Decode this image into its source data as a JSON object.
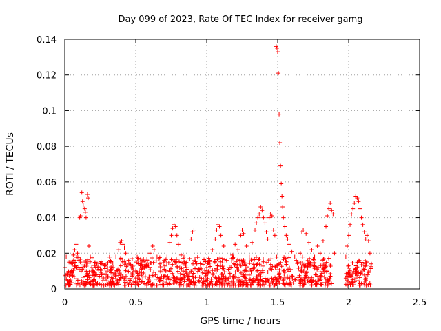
{
  "chart_data": {
    "type": "scatter",
    "title": "Day 099 of 2023, Rate Of TEC Index for receiver gamg",
    "xlabel": "GPS time / hours",
    "ylabel": "ROTI / TECUs",
    "xlim": [
      0,
      2.5
    ],
    "ylim": [
      0,
      0.14
    ],
    "xticks": [
      0,
      0.5,
      1,
      1.5,
      2,
      2.5
    ],
    "xtick_labels": [
      "0",
      "0.5",
      "1",
      "1.5",
      "2",
      "2.5"
    ],
    "yticks": [
      0,
      0.02,
      0.04,
      0.06,
      0.08,
      0.1,
      0.12,
      0.14
    ],
    "ytick_labels": [
      "0",
      "0.02",
      "0.04",
      "0.06",
      "0.08",
      "0.1",
      "0.12",
      "0.14"
    ],
    "grid": true,
    "marker": "+",
    "color": "#ff0000",
    "series": [
      {
        "name": "ROTI",
        "points": [
          [
            0.0,
            0.012
          ],
          [
            0.01,
            0.018
          ],
          [
            0.02,
            0.008
          ],
          [
            0.03,
            0.015
          ],
          [
            0.04,
            0.005
          ],
          [
            0.05,
            0.01
          ],
          [
            0.06,
            0.019
          ],
          [
            0.07,
            0.022
          ],
          [
            0.08,
            0.025
          ],
          [
            0.09,
            0.02
          ],
          [
            0.1,
            0.016
          ],
          [
            0.105,
            0.04
          ],
          [
            0.11,
            0.041
          ],
          [
            0.12,
            0.054
          ],
          [
            0.125,
            0.049
          ],
          [
            0.13,
            0.047
          ],
          [
            0.14,
            0.045
          ],
          [
            0.145,
            0.043
          ],
          [
            0.15,
            0.04
          ],
          [
            0.16,
            0.053
          ],
          [
            0.165,
            0.051
          ],
          [
            0.17,
            0.024
          ],
          [
            0.18,
            0.018
          ],
          [
            0.19,
            0.012
          ],
          [
            0.2,
            0.009
          ],
          [
            0.22,
            0.015
          ],
          [
            0.24,
            0.011
          ],
          [
            0.26,
            0.008
          ],
          [
            0.28,
            0.013
          ],
          [
            0.3,
            0.01
          ],
          [
            0.32,
            0.016
          ],
          [
            0.34,
            0.012
          ],
          [
            0.36,
            0.018
          ],
          [
            0.38,
            0.022
          ],
          [
            0.39,
            0.026
          ],
          [
            0.4,
            0.027
          ],
          [
            0.41,
            0.025
          ],
          [
            0.42,
            0.023
          ],
          [
            0.43,
            0.02
          ],
          [
            0.45,
            0.016
          ],
          [
            0.47,
            0.012
          ],
          [
            0.5,
            0.01
          ],
          [
            0.52,
            0.014
          ],
          [
            0.54,
            0.009
          ],
          [
            0.56,
            0.012
          ],
          [
            0.58,
            0.016
          ],
          [
            0.6,
            0.02
          ],
          [
            0.62,
            0.024
          ],
          [
            0.63,
            0.022
          ],
          [
            0.65,
            0.018
          ],
          [
            0.67,
            0.014
          ],
          [
            0.7,
            0.011
          ],
          [
            0.72,
            0.018
          ],
          [
            0.74,
            0.026
          ],
          [
            0.75,
            0.03
          ],
          [
            0.76,
            0.034
          ],
          [
            0.77,
            0.036
          ],
          [
            0.78,
            0.035
          ],
          [
            0.79,
            0.03
          ],
          [
            0.8,
            0.025
          ],
          [
            0.82,
            0.019
          ],
          [
            0.84,
            0.014
          ],
          [
            0.86,
            0.011
          ],
          [
            0.88,
            0.017
          ],
          [
            0.89,
            0.028
          ],
          [
            0.9,
            0.032
          ],
          [
            0.91,
            0.033
          ],
          [
            0.93,
            0.014
          ],
          [
            0.95,
            0.011
          ],
          [
            0.97,
            0.009
          ],
          [
            1.0,
            0.012
          ],
          [
            1.02,
            0.016
          ],
          [
            1.04,
            0.022
          ],
          [
            1.06,
            0.028
          ],
          [
            1.07,
            0.033
          ],
          [
            1.08,
            0.036
          ],
          [
            1.09,
            0.035
          ],
          [
            1.1,
            0.03
          ],
          [
            1.12,
            0.024
          ],
          [
            1.14,
            0.016
          ],
          [
            1.16,
            0.012
          ],
          [
            1.18,
            0.019
          ],
          [
            1.2,
            0.025
          ],
          [
            1.22,
            0.022
          ],
          [
            1.24,
            0.03
          ],
          [
            1.25,
            0.033
          ],
          [
            1.26,
            0.031
          ],
          [
            1.28,
            0.024
          ],
          [
            1.3,
            0.018
          ],
          [
            1.32,
            0.026
          ],
          [
            1.34,
            0.033
          ],
          [
            1.35,
            0.037
          ],
          [
            1.36,
            0.04
          ],
          [
            1.37,
            0.042
          ],
          [
            1.38,
            0.046
          ],
          [
            1.39,
            0.044
          ],
          [
            1.4,
            0.04
          ],
          [
            1.41,
            0.037
          ],
          [
            1.42,
            0.032
          ],
          [
            1.43,
            0.028
          ],
          [
            1.44,
            0.04
          ],
          [
            1.45,
            0.042
          ],
          [
            1.46,
            0.041
          ],
          [
            1.47,
            0.033
          ],
          [
            1.48,
            0.03
          ],
          [
            1.49,
            0.136
          ],
          [
            1.495,
            0.135
          ],
          [
            1.5,
            0.133
          ],
          [
            1.505,
            0.121
          ],
          [
            1.51,
            0.098
          ],
          [
            1.515,
            0.082
          ],
          [
            1.52,
            0.069
          ],
          [
            1.525,
            0.059
          ],
          [
            1.53,
            0.052
          ],
          [
            1.535,
            0.046
          ],
          [
            1.54,
            0.04
          ],
          [
            1.55,
            0.035
          ],
          [
            1.56,
            0.03
          ],
          [
            1.57,
            0.028
          ],
          [
            1.58,
            0.025
          ],
          [
            1.6,
            0.021
          ],
          [
            1.62,
            0.018
          ],
          [
            1.64,
            0.015
          ],
          [
            1.66,
            0.02
          ],
          [
            1.67,
            0.032
          ],
          [
            1.68,
            0.033
          ],
          [
            1.7,
            0.031
          ],
          [
            1.72,
            0.026
          ],
          [
            1.74,
            0.022
          ],
          [
            1.76,
            0.018
          ],
          [
            1.78,
            0.024
          ],
          [
            1.8,
            0.02
          ],
          [
            1.82,
            0.027
          ],
          [
            1.84,
            0.035
          ],
          [
            1.85,
            0.041
          ],
          [
            1.86,
            0.045
          ],
          [
            1.87,
            0.048
          ],
          [
            1.88,
            0.044
          ],
          [
            1.89,
            0.042
          ],
          [
            1.9,
            0.02
          ],
          [
            1.98,
            0.018
          ],
          [
            1.99,
            0.024
          ],
          [
            2.0,
            0.03
          ],
          [
            2.01,
            0.036
          ],
          [
            2.02,
            0.042
          ],
          [
            2.03,
            0.045
          ],
          [
            2.04,
            0.048
          ],
          [
            2.05,
            0.052
          ],
          [
            2.06,
            0.051
          ],
          [
            2.07,
            0.049
          ],
          [
            2.08,
            0.045
          ],
          [
            2.09,
            0.04
          ],
          [
            2.1,
            0.036
          ],
          [
            2.11,
            0.032
          ],
          [
            2.12,
            0.028
          ],
          [
            2.13,
            0.03
          ],
          [
            2.14,
            0.027
          ],
          [
            2.15,
            0.02
          ],
          [
            2.16,
            0.014
          ]
        ],
        "dense_band": {
          "segments": [
            {
              "x_start": 0.0,
              "x_end": 1.88,
              "y_min": 0.002,
              "y_max": 0.018
            },
            {
              "x_start": 1.98,
              "x_end": 2.16,
              "y_min": 0.002,
              "y_max": 0.016
            }
          ]
        }
      }
    ]
  }
}
